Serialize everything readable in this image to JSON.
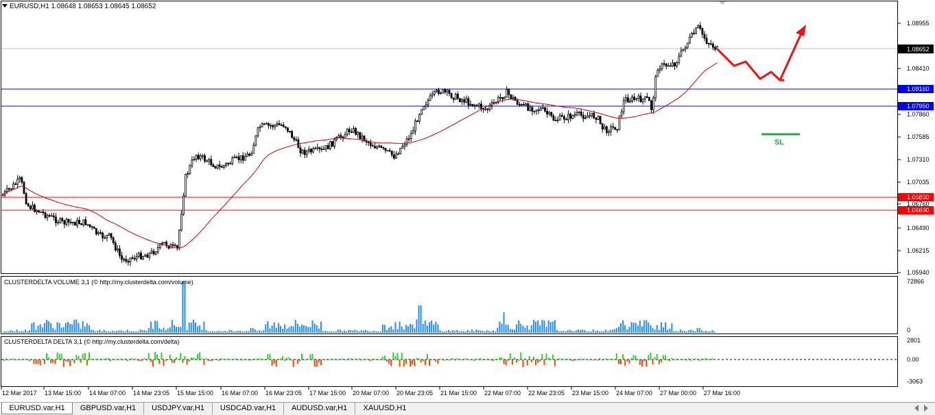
{
  "main_header": "EURUSD,H1  1.08648 1.08653 1.08645 1.08652",
  "price_ticks": [
    "1.08955",
    "1.08410",
    "1.07860",
    "1.07585",
    "1.07310",
    "1.07035",
    "1.06760",
    "1.06490",
    "1.06215",
    "1.05940"
  ],
  "hlines": [
    {
      "label": "1.08160",
      "color": "#0000ff"
    },
    {
      "label": "1.07950",
      "color": "#0000ff"
    },
    {
      "label": "1.06850",
      "color": "#ff0000"
    },
    {
      "label": "1.06690",
      "color": "#ff0000"
    }
  ],
  "current_price": "1.08652",
  "sl_label": "SL",
  "volume_panel": {
    "title": "CLUSTERDELTA VOLUME 3,1 (© http://my.clusterdelta.com/volume)",
    "max_label": "72866",
    "min_label": "0"
  },
  "delta_panel": {
    "title": "CLUSTERDELTA DELTA 3,1 (© http://my.clusterdelta.com/delta)",
    "max_label": "2801",
    "mid_label": "0.00",
    "min_label": "-3063"
  },
  "time_labels": [
    "12 Mar 2017",
    "13 Mar 15:00",
    "14 Mar 07:00",
    "14 Mar 23:05",
    "15 Mar 15:00",
    "16 Mar 07:00",
    "16 Mar 23:05",
    "17 Mar 15:00",
    "20 Mar 07:00",
    "20 Mar 23:05",
    "21 Mar 15:00",
    "22 Mar 07:00",
    "22 Mar 23:05",
    "23 Mar 15:00",
    "24 Mar 07:00",
    "27 Mar 00:00",
    "27 Mar 16:00"
  ],
  "tabs": [
    {
      "label": "EURUSD.var,H1",
      "active": true
    },
    {
      "label": "GBPUSD.var,H1",
      "active": false
    },
    {
      "label": "USDJPY.var,H1",
      "active": false
    },
    {
      "label": "USDCAD.var,H1",
      "active": false
    },
    {
      "label": "AUDUSD.var,H1",
      "active": false
    },
    {
      "label": "XAUUSD,H1",
      "active": false
    }
  ],
  "colors": {
    "volume": "#1e90ff",
    "delta_pos": "#32cd32",
    "delta_neg": "#ff4500",
    "ma": "#cc0000",
    "arrow": "#ee1111",
    "sl": "#22aa44",
    "candle": "#000000"
  }
}
